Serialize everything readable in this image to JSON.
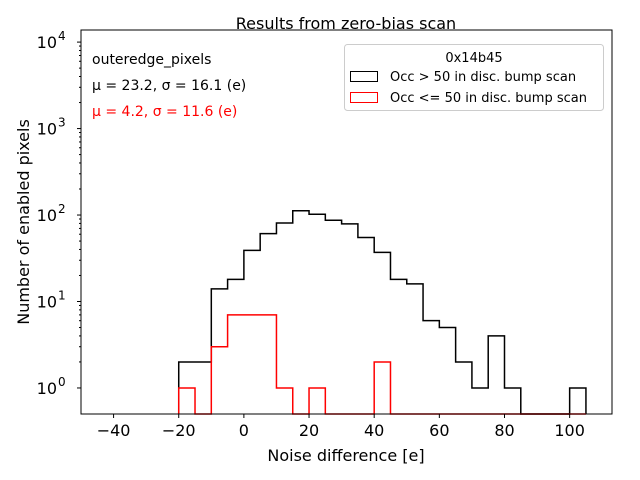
{
  "chart_data": {
    "type": "histogram",
    "title": "Results from zero-bias scan",
    "xlabel": "Noise difference [e]",
    "ylabel": "Number of enabled pixels",
    "xlim": [
      -50,
      113
    ],
    "ylim": [
      0.5,
      13800
    ],
    "yscale": "log",
    "xticks": [
      -40,
      -20,
      0,
      20,
      40,
      60,
      80,
      100
    ],
    "xtick_labels": [
      "−40",
      "−20",
      "0",
      "20",
      "40",
      "60",
      "80",
      "100"
    ],
    "yticks": [
      1,
      10,
      100,
      1000,
      10000
    ],
    "ytick_labels": [
      {
        "base": "10",
        "exp": "0"
      },
      {
        "base": "10",
        "exp": "1"
      },
      {
        "base": "10",
        "exp": "2"
      },
      {
        "base": "10",
        "exp": "3"
      },
      {
        "base": "10",
        "exp": "4"
      }
    ],
    "bin_edges": [
      -20,
      -15,
      -10,
      -5,
      0,
      5,
      10,
      15,
      20,
      25,
      30,
      35,
      40,
      45,
      50,
      55,
      60,
      65,
      70,
      75,
      80,
      85,
      90,
      95,
      100,
      105
    ],
    "series": [
      {
        "name": "Occ > 50 in disc. bump scan",
        "color": "#000000",
        "values": [
          2,
          2,
          14,
          18,
          39,
          61,
          81,
          112,
          102,
          87,
          79,
          55,
          37,
          18,
          16,
          6,
          5,
          2,
          1,
          4,
          1,
          0,
          0,
          0,
          1
        ]
      },
      {
        "name": "Occ <= 50 in disc. bump scan",
        "color": "#ff0000",
        "values": [
          1,
          0,
          3,
          7,
          7,
          7,
          1,
          0,
          1,
          0,
          0,
          0,
          2,
          0,
          0,
          0,
          0,
          0,
          0,
          0,
          0,
          0,
          0,
          0,
          0
        ]
      }
    ],
    "legend": {
      "title": "0x14b45",
      "placement": "top-right"
    },
    "annotations": [
      {
        "text": "outeredge_pixels",
        "color": "#000000"
      },
      {
        "text": "μ = 23.2, σ = 16.1 (e)",
        "color": "#000000"
      },
      {
        "text": "μ = 4.2, σ = 11.6 (e)",
        "color": "#ff0000"
      }
    ]
  }
}
